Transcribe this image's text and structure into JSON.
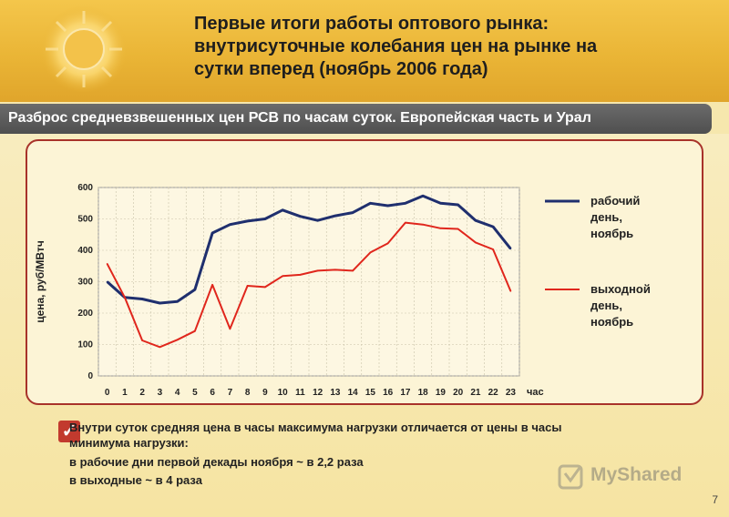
{
  "header": {
    "title_line1": "Первые итоги работы оптового рынка:",
    "title_line2": "внутрисуточные колебания цен на рынке на",
    "title_line3": "сутки вперед (ноябрь 2006 года)"
  },
  "subtitle": "Разброс средневзвешенных цен РСВ по часам суток. Европейская часть и Урал",
  "chart_data": {
    "type": "line",
    "title": "",
    "xlabel": "час",
    "ylabel": "цена, руб/МВтч",
    "x": [
      0,
      1,
      2,
      3,
      4,
      5,
      6,
      7,
      8,
      9,
      10,
      11,
      12,
      13,
      14,
      15,
      16,
      17,
      18,
      19,
      20,
      21,
      22,
      23
    ],
    "ylim": [
      0,
      600
    ],
    "yticks": [
      0,
      100,
      200,
      300,
      400,
      500,
      600
    ],
    "grid": true,
    "legend_position": "right",
    "series": [
      {
        "name": "рабочий день, ноябрь",
        "color": "#1f2f6e",
        "values": [
          300,
          250,
          245,
          232,
          237,
          275,
          455,
          482,
          493,
          500,
          528,
          508,
          495,
          510,
          520,
          550,
          542,
          550,
          573,
          550,
          545,
          495,
          475,
          405
        ]
      },
      {
        "name": "выходной день, ноябрь",
        "color": "#e0261c",
        "values": [
          357,
          250,
          113,
          92,
          115,
          143,
          290,
          150,
          287,
          283,
          318,
          322,
          335,
          338,
          335,
          393,
          422,
          488,
          482,
          470,
          468,
          425,
          403,
          270
        ]
      }
    ]
  },
  "legend": {
    "workday_line1": "рабочий",
    "workday_line2": "день,",
    "workday_line3": "ноябрь",
    "weekend_line1": "выходной",
    "weekend_line2": "день,",
    "weekend_line3": "ноябрь"
  },
  "notes": {
    "line1": "Внутри суток средняя цена в часы максимума нагрузки отличается от цены в часы",
    "line2": "минимума нагрузки:",
    "line3": "в рабочие дни первой декады ноября ~ в 2,2 раза",
    "line4": "в выходные ~ в 4 раза"
  },
  "watermark": "MyShared",
  "page_number": "7"
}
